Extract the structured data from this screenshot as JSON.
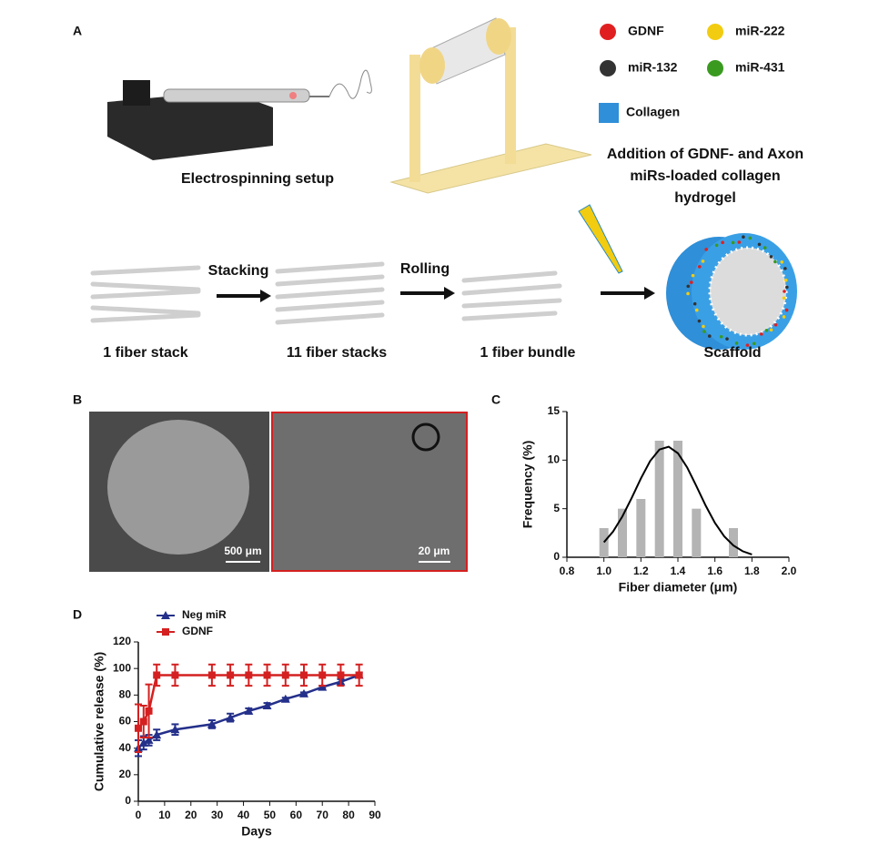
{
  "panel_labels": [
    "A",
    "B",
    "C",
    "D"
  ],
  "diagram": {
    "legend": [
      {
        "label": "GDNF",
        "color": "#e02020"
      },
      {
        "label": "miR-222",
        "color": "#f2cc10"
      },
      {
        "label": "miR-132",
        "color": "#333333"
      },
      {
        "label": "miR-431",
        "color": "#3a9a20"
      },
      {
        "label": "Collagen",
        "color": "#2f8fd8"
      }
    ],
    "setup_label": "Electrospinning setup",
    "hydrogel_label": [
      "Addition of GDNF- and Axon",
      "miRs-loaded collagen",
      "hydrogel"
    ],
    "arrows": [
      "Stacking",
      "Rolling"
    ],
    "stages": [
      "1 fiber stack",
      "11 fiber stacks",
      "1 fiber bundle",
      "Scaffold"
    ]
  },
  "images": {
    "scale_bars": [
      "500 μm",
      "20 μm"
    ]
  },
  "chart_data": [
    {
      "type": "bar",
      "x": [
        1.0,
        1.1,
        1.2,
        1.3,
        1.4,
        1.5,
        1.7
      ],
      "values": [
        3,
        5,
        6,
        12,
        12,
        5,
        3
      ],
      "color": "#b4b4b4",
      "curve": {
        "x": [
          1.0,
          1.05,
          1.1,
          1.15,
          1.2,
          1.25,
          1.3,
          1.35,
          1.4,
          1.45,
          1.5,
          1.55,
          1.6,
          1.65,
          1.7,
          1.75,
          1.8
        ],
        "values": [
          1.54,
          2.66,
          4.21,
          6.1,
          8.12,
          9.91,
          11.09,
          11.38,
          10.71,
          9.25,
          7.32,
          5.32,
          3.54,
          2.16,
          1.21,
          0.62,
          0.29
        ],
        "color": "#000000"
      },
      "xlabel": "Fiber diameter (μm)",
      "ylabel": "Frequency (%)",
      "xlim": [
        0.8,
        2.0
      ],
      "xticks": [
        0.8,
        {
          "value": 1.0,
          "label": "1.0"
        },
        1.2,
        1.4,
        1.6,
        1.8,
        {
          "value": 2.0,
          "label": "2.0"
        }
      ],
      "ylim": [
        0,
        15
      ],
      "yticks": [
        0,
        5,
        10,
        15
      ]
    },
    {
      "type": "line",
      "x": [
        0,
        2,
        4,
        7,
        14,
        28,
        35,
        42,
        49,
        56,
        63,
        70,
        77,
        84
      ],
      "series": [
        {
          "name": "Neg miR",
          "color": "#24308a",
          "marker": "triangle",
          "values": [
            40,
            44,
            46,
            50,
            54,
            58,
            63,
            68,
            72,
            77,
            81,
            86,
            90,
            95
          ],
          "errors": [
            6,
            5,
            4,
            4,
            4,
            3,
            3,
            2,
            2,
            1,
            1,
            1,
            2,
            2
          ]
        },
        {
          "name": "GDNF",
          "color": "#d42020",
          "marker": "square",
          "values": [
            55,
            60,
            68,
            95,
            95,
            95,
            95,
            95,
            95,
            95,
            95,
            95,
            95,
            95
          ],
          "errors": [
            18,
            12,
            20,
            8,
            8,
            8,
            8,
            8,
            8,
            8,
            8,
            8,
            8,
            8
          ]
        }
      ],
      "xlabel": "Days",
      "ylabel": "Cumulative release (%)",
      "xlim": [
        0,
        90
      ],
      "xticks": [
        0,
        10,
        20,
        30,
        40,
        50,
        60,
        70,
        80,
        90
      ],
      "ylim": [
        0,
        120
      ],
      "yticks": [
        0,
        20,
        40,
        60,
        80,
        100,
        120
      ]
    }
  ]
}
